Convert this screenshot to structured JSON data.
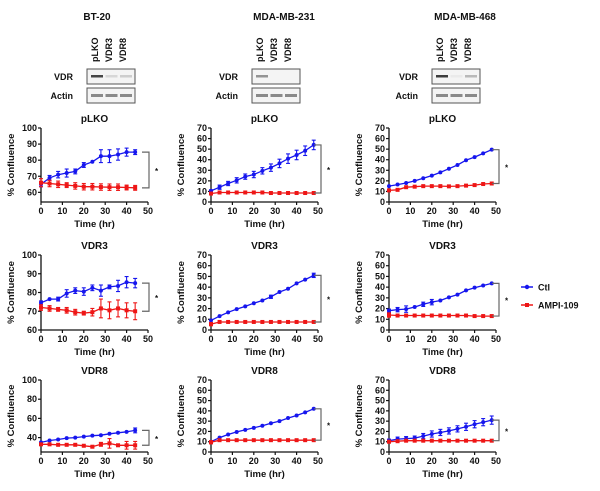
{
  "blots": [
    {
      "cell_line": "BT-20",
      "lanes": [
        "pLKO",
        "VDR3",
        "VDR8"
      ],
      "rows": [
        "VDR",
        "Actin"
      ],
      "vdr_band_intensity": [
        0.9,
        0.15,
        0.2
      ]
    },
    {
      "cell_line": "MDA-MB-231",
      "lanes": [
        "pLKO",
        "VDR3",
        "VDR8"
      ],
      "rows": [
        "VDR",
        "Actin"
      ],
      "vdr_band_intensity": [
        0.5,
        0.0,
        0.0
      ]
    },
    {
      "cell_line": "MDA-MB-468",
      "lanes": [
        "pLKO",
        "VDR3",
        "VDR8"
      ],
      "rows": [
        "VDR",
        "Actin"
      ],
      "vdr_band_intensity": [
        0.95,
        0.05,
        0.3
      ]
    }
  ],
  "legend": {
    "position": "right",
    "items": [
      {
        "label": "Ctl",
        "color": "#1616ee"
      },
      {
        "label": "AMPI-109",
        "color": "#ee1616"
      }
    ]
  },
  "chart_data": [
    {
      "type": "line",
      "cell_line": "BT-20",
      "title": "pLKO",
      "xlabel": "Time (hr)",
      "ylabel": "% Confluence",
      "xlim": [
        0,
        50
      ],
      "xticks": [
        0,
        10,
        20,
        30,
        40,
        50
      ],
      "ylim": [
        54,
        100
      ],
      "yticks": [
        60,
        70,
        80,
        90,
        100
      ],
      "annotation": "*",
      "x": [
        0,
        4,
        8,
        12,
        16,
        20,
        24,
        28,
        32,
        36,
        40,
        44
      ],
      "series": [
        {
          "name": "Ctl",
          "values": [
            65,
            69,
            71,
            72,
            73,
            77,
            79,
            82.5,
            82.5,
            83.5,
            85,
            85
          ],
          "err": [
            1.5,
            1.5,
            2,
            2.5,
            1.5,
            1.5,
            0.5,
            4,
            4,
            3.5,
            2.5,
            1.5
          ]
        },
        {
          "name": "AMPI-109",
          "values": [
            66,
            65.5,
            65,
            64.5,
            64,
            63.5,
            63.5,
            63.3,
            63.2,
            63.2,
            63,
            62.8
          ],
          "err": [
            2.5,
            2,
            2,
            1.5,
            2,
            2,
            2,
            2,
            2,
            2,
            1.5,
            1.5
          ]
        }
      ]
    },
    {
      "type": "line",
      "cell_line": "MDA-MB-231",
      "title": "pLKO",
      "xlabel": "Time (hr)",
      "ylabel": "% Confluence",
      "xlim": [
        0,
        50
      ],
      "xticks": [
        0,
        10,
        20,
        30,
        40,
        50
      ],
      "ylim": [
        0,
        70
      ],
      "yticks": [
        0,
        10,
        20,
        30,
        40,
        50,
        60,
        70
      ],
      "annotation": "*",
      "x": [
        0,
        4,
        8,
        12,
        16,
        20,
        24,
        28,
        32,
        36,
        40,
        44,
        48
      ],
      "series": [
        {
          "name": "Ctl",
          "values": [
            10.5,
            14,
            17.5,
            20.5,
            24,
            26,
            29.5,
            32.5,
            36.5,
            41,
            44.5,
            48.5,
            54
          ],
          "err": [
            1,
            2,
            2,
            2.5,
            2.5,
            3,
            3,
            3.5,
            4,
            4.5,
            4.5,
            4.5,
            4.5
          ]
        },
        {
          "name": "AMPI-109",
          "values": [
            8,
            9,
            9,
            9,
            9,
            9,
            9,
            8.5,
            8.5,
            8.5,
            8.5,
            8.5,
            8.5
          ],
          "err": [
            1,
            0.5,
            0.5,
            0.5,
            0.5,
            0.5,
            0.5,
            0.5,
            0.5,
            0.5,
            0.5,
            0.5,
            0.5
          ]
        }
      ]
    },
    {
      "type": "line",
      "cell_line": "MDA-MB-468",
      "title": "pLKO",
      "xlabel": "Time (hr)",
      "ylabel": "% Confluence",
      "xlim": [
        0,
        50
      ],
      "xticks": [
        0,
        10,
        20,
        30,
        40,
        50
      ],
      "ylim": [
        0,
        70
      ],
      "yticks": [
        0,
        10,
        20,
        30,
        40,
        50,
        60,
        70
      ],
      "annotation": "*",
      "x": [
        0,
        4,
        8,
        12,
        16,
        20,
        24,
        28,
        32,
        36,
        40,
        44,
        48
      ],
      "series": [
        {
          "name": "Ctl",
          "values": [
            15,
            16.5,
            18,
            20,
            22.5,
            25,
            28,
            31.5,
            35,
            39.5,
            42.5,
            46,
            49.5
          ],
          "err": [
            0.5,
            0.5,
            0.5,
            0.5,
            0.5,
            0.5,
            0.5,
            0.5,
            0.5,
            0.5,
            0.5,
            0.5,
            0.5
          ]
        },
        {
          "name": "AMPI-109",
          "values": [
            11,
            11.5,
            14,
            14.5,
            15,
            15,
            15,
            14.8,
            15,
            15.5,
            16,
            17,
            17.5
          ],
          "err": [
            0.5,
            0.5,
            0.5,
            0.5,
            0.5,
            0.5,
            0.5,
            0.5,
            0.5,
            0.5,
            0.5,
            0.5,
            0.5
          ]
        }
      ]
    },
    {
      "type": "line",
      "cell_line": "BT-20",
      "title": "VDR3",
      "xlabel": "Time (hr)",
      "ylabel": "% Confluence",
      "xlim": [
        0,
        50
      ],
      "xticks": [
        0,
        10,
        20,
        30,
        40,
        50
      ],
      "ylim": [
        60,
        100
      ],
      "yticks": [
        60,
        70,
        80,
        90,
        100
      ],
      "annotation": "*",
      "x": [
        0,
        4,
        8,
        12,
        16,
        20,
        24,
        28,
        32,
        36,
        40,
        44
      ],
      "series": [
        {
          "name": "Ctl",
          "values": [
            74.5,
            76.5,
            76.5,
            79.5,
            81,
            80.5,
            82.5,
            81,
            83,
            83.5,
            85.5,
            85
          ],
          "err": [
            1,
            0.5,
            1,
            2,
            1.5,
            2,
            1.5,
            3,
            1,
            3,
            3,
            2.5
          ]
        },
        {
          "name": "AMPI-109",
          "values": [
            72,
            71.5,
            71,
            70.5,
            69.5,
            69,
            69.5,
            71.5,
            70.5,
            71.5,
            70.5,
            70
          ],
          "err": [
            1.5,
            1.5,
            1,
            1.5,
            1.5,
            1,
            2,
            5,
            4.5,
            4.5,
            4,
            4.5
          ]
        }
      ]
    },
    {
      "type": "line",
      "cell_line": "MDA-MB-231",
      "title": "VDR3",
      "xlabel": "Time (hr)",
      "ylabel": "% Confluence",
      "xlim": [
        0,
        50
      ],
      "xticks": [
        0,
        10,
        20,
        30,
        40,
        50
      ],
      "ylim": [
        0,
        70
      ],
      "yticks": [
        0,
        10,
        20,
        30,
        40,
        50,
        60,
        70
      ],
      "annotation": "*",
      "x": [
        0,
        4,
        8,
        12,
        16,
        20,
        24,
        28,
        32,
        36,
        40,
        44,
        48
      ],
      "series": [
        {
          "name": "Ctl",
          "values": [
            9,
            13,
            16.5,
            19.5,
            22,
            25,
            27.5,
            31,
            35.5,
            38.5,
            43.5,
            47,
            51
          ],
          "err": [
            0.5,
            0.5,
            0.5,
            0.5,
            0.5,
            0.5,
            0.5,
            1.5,
            0.5,
            0.5,
            0.5,
            0.5,
            2
          ]
        },
        {
          "name": "AMPI-109",
          "values": [
            5.5,
            7.5,
            7.5,
            7.5,
            7.5,
            7.5,
            7.5,
            7.5,
            7.5,
            7.5,
            7.5,
            7.5,
            7.5
          ],
          "err": [
            1.5,
            0.5,
            0.5,
            0.5,
            0.5,
            0.5,
            0.5,
            0.5,
            0.5,
            0.5,
            0.5,
            0.5,
            0.5
          ]
        }
      ]
    },
    {
      "type": "line",
      "cell_line": "MDA-MB-468",
      "title": "VDR3",
      "xlabel": "Time (hr)",
      "ylabel": "% Confluence",
      "xlim": [
        0,
        50
      ],
      "xticks": [
        0,
        10,
        20,
        30,
        40,
        50
      ],
      "ylim": [
        0,
        70
      ],
      "yticks": [
        0,
        10,
        20,
        30,
        40,
        50,
        60,
        70
      ],
      "annotation": "*",
      "x": [
        0,
        4,
        8,
        12,
        16,
        20,
        24,
        28,
        32,
        36,
        40,
        44,
        48
      ],
      "series": [
        {
          "name": "Ctl",
          "values": [
            18,
            19,
            19.5,
            21.5,
            24,
            26,
            27.5,
            30.5,
            33,
            37,
            39.5,
            41.5,
            43.5
          ],
          "err": [
            1.5,
            2,
            3,
            0.5,
            2,
            2.5,
            0.5,
            0.5,
            0.5,
            0.5,
            0.5,
            0.5,
            0.5
          ]
        },
        {
          "name": "AMPI-109",
          "values": [
            14,
            13.5,
            13.5,
            13.5,
            13.5,
            13.5,
            13.5,
            13.5,
            13.5,
            13.5,
            13,
            13,
            13
          ],
          "err": [
            2,
            0.5,
            0.5,
            0.5,
            0.5,
            0.5,
            0.5,
            0.5,
            0.5,
            0.5,
            0.5,
            0.5,
            0.5
          ]
        }
      ]
    },
    {
      "type": "line",
      "cell_line": "BT-20",
      "title": "VDR8",
      "xlabel": "Time (hr)",
      "ylabel": "% Confluence",
      "xlim": [
        0,
        50
      ],
      "xticks": [
        0,
        10,
        20,
        30,
        40,
        50
      ],
      "ylim": [
        25,
        100
      ],
      "yticks": [
        40,
        60,
        80,
        100
      ],
      "annotation": "*",
      "x": [
        0,
        4,
        8,
        12,
        16,
        20,
        24,
        28,
        32,
        36,
        40,
        44
      ],
      "series": [
        {
          "name": "Ctl",
          "values": [
            35,
            37,
            38,
            39.5,
            40,
            41,
            42,
            42.5,
            44,
            45,
            46,
            47.5
          ],
          "err": [
            0.5,
            0.5,
            0.5,
            0.5,
            0.5,
            0.5,
            0.5,
            0.5,
            0.5,
            0.5,
            0.5,
            2.5
          ]
        },
        {
          "name": "AMPI-109",
          "values": [
            33,
            33,
            32.5,
            32.5,
            32.5,
            31.5,
            30.5,
            33,
            34,
            32,
            32,
            32
          ],
          "err": [
            1,
            0.5,
            0.5,
            0.5,
            0.5,
            0.5,
            1,
            2,
            5,
            1,
            4,
            4
          ]
        }
      ]
    },
    {
      "type": "line",
      "cell_line": "MDA-MB-231",
      "title": "VDR8",
      "xlabel": "Time (hr)",
      "ylabel": "% Confluence",
      "xlim": [
        0,
        50
      ],
      "xticks": [
        0,
        10,
        20,
        30,
        40,
        50
      ],
      "ylim": [
        0,
        70
      ],
      "yticks": [
        0,
        10,
        20,
        30,
        40,
        50,
        60,
        70
      ],
      "annotation": "*",
      "x": [
        0,
        4,
        8,
        12,
        16,
        20,
        24,
        28,
        32,
        36,
        40,
        44,
        48
      ],
      "series": [
        {
          "name": "Ctl",
          "values": [
            10,
            14,
            17,
            19.5,
            21.5,
            23.5,
            25.5,
            28,
            30,
            33,
            35.5,
            38.5,
            42
          ],
          "err": [
            0.5,
            0.5,
            0.5,
            0.5,
            0.5,
            0.5,
            0.5,
            0.5,
            0.5,
            0.5,
            0.5,
            0.5,
            0.5
          ]
        },
        {
          "name": "AMPI-109",
          "values": [
            9.5,
            11.5,
            11.5,
            11.5,
            11.5,
            11.5,
            11.5,
            11.5,
            11.5,
            11.5,
            11.5,
            11.5,
            11.5
          ],
          "err": [
            1.5,
            0.5,
            0.5,
            0.5,
            0.5,
            0.5,
            0.5,
            0.5,
            0.5,
            0.5,
            0.5,
            0.5,
            0.5
          ]
        }
      ]
    },
    {
      "type": "line",
      "cell_line": "MDA-MB-468",
      "title": "VDR8",
      "xlabel": "Time (hr)",
      "ylabel": "% Confluence",
      "xlim": [
        0,
        50
      ],
      "xticks": [
        0,
        10,
        20,
        30,
        40,
        50
      ],
      "ylim": [
        0,
        70
      ],
      "yticks": [
        0,
        10,
        20,
        30,
        40,
        50,
        60,
        70
      ],
      "annotation": "*",
      "x": [
        0,
        4,
        8,
        12,
        16,
        20,
        24,
        28,
        32,
        36,
        40,
        44,
        48
      ],
      "series": [
        {
          "name": "Ctl",
          "values": [
            11,
            12.5,
            13,
            13.5,
            15.5,
            17.5,
            19,
            20.5,
            22.5,
            24.5,
            27,
            29,
            31
          ],
          "err": [
            1.5,
            2,
            2,
            2,
            2.5,
            3,
            3,
            3,
            3,
            3.5,
            3.5,
            3.5,
            4
          ]
        },
        {
          "name": "AMPI-109",
          "values": [
            10,
            10.5,
            11,
            11,
            11,
            11,
            11,
            11,
            11,
            11,
            11,
            11,
            11
          ],
          "err": [
            1,
            0.5,
            0.5,
            0.5,
            0.5,
            0.5,
            0.5,
            0.5,
            0.5,
            0.5,
            0.5,
            0.5,
            0.5
          ]
        }
      ]
    }
  ]
}
